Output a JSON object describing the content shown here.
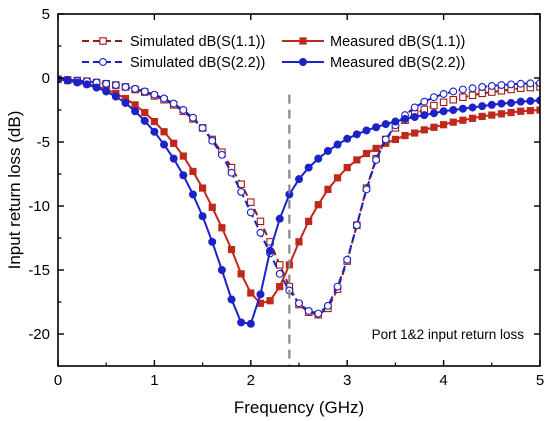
{
  "chart_data": {
    "type": "line",
    "xlabel": "Frequency (GHz)",
    "ylabel": "Input return loss (dB)",
    "xlim": [
      0,
      5
    ],
    "ylim": [
      -22.5,
      5
    ],
    "xticks": [
      0,
      1,
      2,
      3,
      4,
      5
    ],
    "xtick_labels": [
      "0",
      "1",
      "2",
      "3",
      "4",
      "5"
    ],
    "yticks": [
      5,
      0,
      -5,
      -10,
      -15,
      -20
    ],
    "ytick_labels": [
      "5",
      "0",
      "-5",
      "-10",
      "-15",
      "-20"
    ],
    "grid": false,
    "legend_placement": "top",
    "annotation": "Port 1&2 input return loss",
    "reference_line_x": 2.4,
    "series": [
      {
        "name": "Simulated dB(S(1.1))",
        "color": "#9b1c16",
        "line_style": "dashed",
        "marker": "open-square",
        "x": [
          0,
          0.1,
          0.2,
          0.3,
          0.4,
          0.5,
          0.6,
          0.7,
          0.8,
          0.9,
          1.0,
          1.1,
          1.2,
          1.3,
          1.4,
          1.5,
          1.6,
          1.7,
          1.8,
          1.9,
          2.0,
          2.1,
          2.2,
          2.3,
          2.4,
          2.5,
          2.6,
          2.7,
          2.8,
          2.9,
          3.0,
          3.1,
          3.2,
          3.3,
          3.4,
          3.5,
          3.6,
          3.7,
          3.8,
          3.9,
          4.0,
          4.1,
          4.2,
          4.3,
          4.4,
          4.5,
          4.6,
          4.7,
          4.8,
          4.9,
          5.0
        ],
        "y": [
          -0.1,
          -0.15,
          -0.2,
          -0.25,
          -0.35,
          -0.45,
          -0.55,
          -0.7,
          -0.9,
          -1.1,
          -1.4,
          -1.7,
          -2.1,
          -2.6,
          -3.2,
          -3.9,
          -4.8,
          -5.8,
          -7.0,
          -8.3,
          -9.7,
          -11.2,
          -12.8,
          -14.6,
          -16.3,
          -17.7,
          -18.3,
          -18.5,
          -18.0,
          -16.5,
          -14.3,
          -11.5,
          -8.6,
          -6.3,
          -4.8,
          -3.9,
          -3.3,
          -2.8,
          -2.45,
          -2.15,
          -1.9,
          -1.7,
          -1.5,
          -1.35,
          -1.2,
          -1.1,
          -1.0,
          -0.9,
          -0.8,
          -0.75,
          -0.7
        ]
      },
      {
        "name": "Measured dB(S(1.1))",
        "color": "#c0281c",
        "line_style": "solid",
        "marker": "filled-square",
        "x": [
          0,
          0.1,
          0.2,
          0.3,
          0.4,
          0.5,
          0.6,
          0.7,
          0.8,
          0.9,
          1.0,
          1.1,
          1.2,
          1.3,
          1.4,
          1.5,
          1.6,
          1.7,
          1.8,
          1.9,
          2.0,
          2.1,
          2.2,
          2.3,
          2.4,
          2.5,
          2.6,
          2.7,
          2.8,
          2.9,
          3.0,
          3.1,
          3.2,
          3.3,
          3.4,
          3.5,
          3.6,
          3.7,
          3.8,
          3.9,
          4.0,
          4.1,
          4.2,
          4.3,
          4.4,
          4.5,
          4.6,
          4.7,
          4.8,
          4.9,
          5.0
        ],
        "y": [
          -0.1,
          -0.2,
          -0.3,
          -0.45,
          -0.65,
          -0.9,
          -1.2,
          -1.6,
          -2.1,
          -2.7,
          -3.4,
          -4.2,
          -5.1,
          -6.1,
          -7.3,
          -8.6,
          -10.1,
          -11.7,
          -13.4,
          -15.3,
          -16.8,
          -17.6,
          -17.4,
          -16.3,
          -14.6,
          -12.8,
          -11.2,
          -9.9,
          -8.7,
          -7.8,
          -7.0,
          -6.4,
          -5.9,
          -5.5,
          -5.1,
          -4.8,
          -4.5,
          -4.3,
          -4.05,
          -3.85,
          -3.65,
          -3.45,
          -3.3,
          -3.15,
          -3.0,
          -2.9,
          -2.8,
          -2.7,
          -2.6,
          -2.55,
          -2.5
        ]
      },
      {
        "name": "Simulated dB(S(2.2))",
        "color": "#1a22c8",
        "line_style": "dashed",
        "marker": "open-circle",
        "x": [
          0,
          0.1,
          0.2,
          0.3,
          0.4,
          0.5,
          0.6,
          0.7,
          0.8,
          0.9,
          1.0,
          1.1,
          1.2,
          1.3,
          1.4,
          1.5,
          1.6,
          1.7,
          1.8,
          1.9,
          2.0,
          2.1,
          2.2,
          2.3,
          2.4,
          2.5,
          2.6,
          2.7,
          2.8,
          2.9,
          3.0,
          3.1,
          3.2,
          3.3,
          3.4,
          3.5,
          3.6,
          3.7,
          3.8,
          3.9,
          4.0,
          4.1,
          4.2,
          4.3,
          4.4,
          4.5,
          4.6,
          4.7,
          4.8,
          4.9,
          5.0
        ],
        "y": [
          -0.1,
          -0.15,
          -0.2,
          -0.25,
          -0.35,
          -0.45,
          -0.55,
          -0.7,
          -0.85,
          -1.05,
          -1.3,
          -1.6,
          -2.0,
          -2.5,
          -3.1,
          -3.9,
          -4.9,
          -6.0,
          -7.4,
          -8.9,
          -10.5,
          -12.1,
          -13.7,
          -15.3,
          -16.6,
          -17.6,
          -18.2,
          -18.4,
          -17.8,
          -16.3,
          -14.2,
          -11.5,
          -8.7,
          -6.4,
          -4.8,
          -3.7,
          -2.9,
          -2.3,
          -1.85,
          -1.5,
          -1.25,
          -1.05,
          -0.9,
          -0.8,
          -0.7,
          -0.62,
          -0.55,
          -0.5,
          -0.45,
          -0.42,
          -0.4
        ]
      },
      {
        "name": "Measured dB(S(2.2))",
        "color": "#1a22c8",
        "line_style": "solid",
        "marker": "filled-circle",
        "x": [
          0,
          0.1,
          0.2,
          0.3,
          0.4,
          0.5,
          0.6,
          0.7,
          0.8,
          0.9,
          1.0,
          1.1,
          1.2,
          1.3,
          1.4,
          1.5,
          1.6,
          1.7,
          1.8,
          1.9,
          2.0,
          2.1,
          2.2,
          2.3,
          2.4,
          2.5,
          2.6,
          2.7,
          2.8,
          2.9,
          3.0,
          3.1,
          3.2,
          3.3,
          3.4,
          3.5,
          3.6,
          3.7,
          3.8,
          3.9,
          4.0,
          4.1,
          4.2,
          4.3,
          4.4,
          4.5,
          4.6,
          4.7,
          4.8,
          4.9,
          5.0
        ],
        "y": [
          -0.1,
          -0.2,
          -0.35,
          -0.5,
          -0.75,
          -1.05,
          -1.45,
          -1.95,
          -2.6,
          -3.35,
          -4.2,
          -5.2,
          -6.3,
          -7.6,
          -9.1,
          -10.8,
          -12.8,
          -15.0,
          -17.3,
          -19.1,
          -19.2,
          -16.9,
          -13.5,
          -11.0,
          -9.1,
          -7.9,
          -7.0,
          -6.3,
          -5.7,
          -5.2,
          -4.75,
          -4.4,
          -4.1,
          -3.85,
          -3.6,
          -3.4,
          -3.2,
          -3.05,
          -2.9,
          -2.75,
          -2.6,
          -2.5,
          -2.4,
          -2.3,
          -2.2,
          -2.1,
          -2.0,
          -1.95,
          -1.85,
          -1.8,
          -1.75
        ]
      }
    ]
  }
}
